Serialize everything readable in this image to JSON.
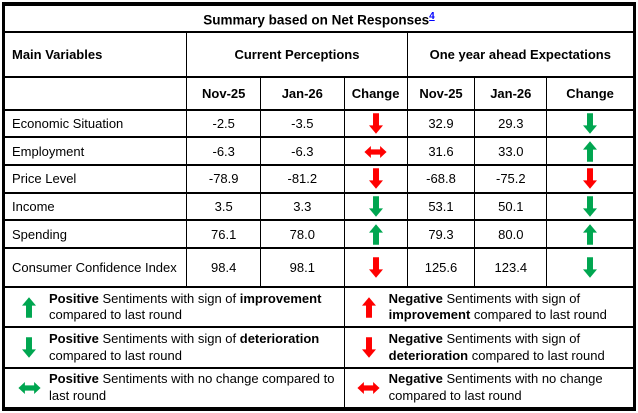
{
  "title": {
    "text": "Summary based on Net Responses",
    "footnote": "4"
  },
  "columns": {
    "main": "Main Variables",
    "group1": "Current Perceptions",
    "group2": "One year ahead Expectations",
    "sub": [
      "Nov-25",
      "Jan-26",
      "Change"
    ]
  },
  "rows": [
    {
      "label": "Economic Situation",
      "cp": {
        "nov": "-2.5",
        "jan": "-3.5",
        "change": {
          "dir": "down",
          "color": "red"
        }
      },
      "ex": {
        "nov": "32.9",
        "jan": "29.3",
        "change": {
          "dir": "down",
          "color": "green"
        }
      }
    },
    {
      "label": "Employment",
      "cp": {
        "nov": "-6.3",
        "jan": "-6.3",
        "change": {
          "dir": "lr",
          "color": "red"
        }
      },
      "ex": {
        "nov": "31.6",
        "jan": "33.0",
        "change": {
          "dir": "up",
          "color": "green"
        }
      }
    },
    {
      "label": "Price Level",
      "cp": {
        "nov": "-78.9",
        "jan": "-81.2",
        "change": {
          "dir": "down",
          "color": "red"
        }
      },
      "ex": {
        "nov": "-68.8",
        "jan": "-75.2",
        "change": {
          "dir": "down",
          "color": "red"
        }
      }
    },
    {
      "label": "Income",
      "cp": {
        "nov": "3.5",
        "jan": "3.3",
        "change": {
          "dir": "down",
          "color": "green"
        }
      },
      "ex": {
        "nov": "53.1",
        "jan": "50.1",
        "change": {
          "dir": "down",
          "color": "green"
        }
      }
    },
    {
      "label": "Spending",
      "cp": {
        "nov": "76.1",
        "jan": "78.0",
        "change": {
          "dir": "up",
          "color": "green"
        }
      },
      "ex": {
        "nov": "79.3",
        "jan": "80.0",
        "change": {
          "dir": "up",
          "color": "green"
        }
      }
    },
    {
      "label": "Consumer Confidence Index",
      "cp": {
        "nov": "98.4",
        "jan": "98.1",
        "change": {
          "dir": "down",
          "color": "red"
        }
      },
      "ex": {
        "nov": "125.6",
        "jan": "123.4",
        "change": {
          "dir": "down",
          "color": "green"
        }
      }
    }
  ],
  "legend": [
    {
      "left": {
        "arrow": {
          "dir": "up",
          "color": "green"
        },
        "bold1": "Positive",
        "text1": " Sentiments with sign of ",
        "bold2": "improvement",
        "text2": " compared to last round"
      },
      "right": {
        "arrow": {
          "dir": "up",
          "color": "red"
        },
        "bold1": "Negative",
        "text1": " Sentiments with sign of ",
        "bold2": "improvement",
        "text2": " compared to last round"
      }
    },
    {
      "left": {
        "arrow": {
          "dir": "down",
          "color": "green"
        },
        "bold1": "Positive",
        "text1": " Sentiments with sign of ",
        "bold2": "deterioration",
        "text2": " compared to last round"
      },
      "right": {
        "arrow": {
          "dir": "down",
          "color": "red"
        },
        "bold1": "Negative",
        "text1": " Sentiments with sign of ",
        "bold2": "deterioration",
        "text2": " compared to last round"
      }
    },
    {
      "left": {
        "arrow": {
          "dir": "lr",
          "color": "green"
        },
        "bold1": "Positive",
        "text1": " Sentiments with no change compared to last round",
        "bold2": "",
        "text2": ""
      },
      "right": {
        "arrow": {
          "dir": "lr",
          "color": "red"
        },
        "bold1": "Negative",
        "text1": " Sentiments with no change compared to last round",
        "bold2": "",
        "text2": ""
      }
    }
  ],
  "colors": {
    "arrow_green": "#00A650",
    "arrow_red": "#FF0000",
    "footnote_link": "#0000FF",
    "border": "#000000"
  }
}
